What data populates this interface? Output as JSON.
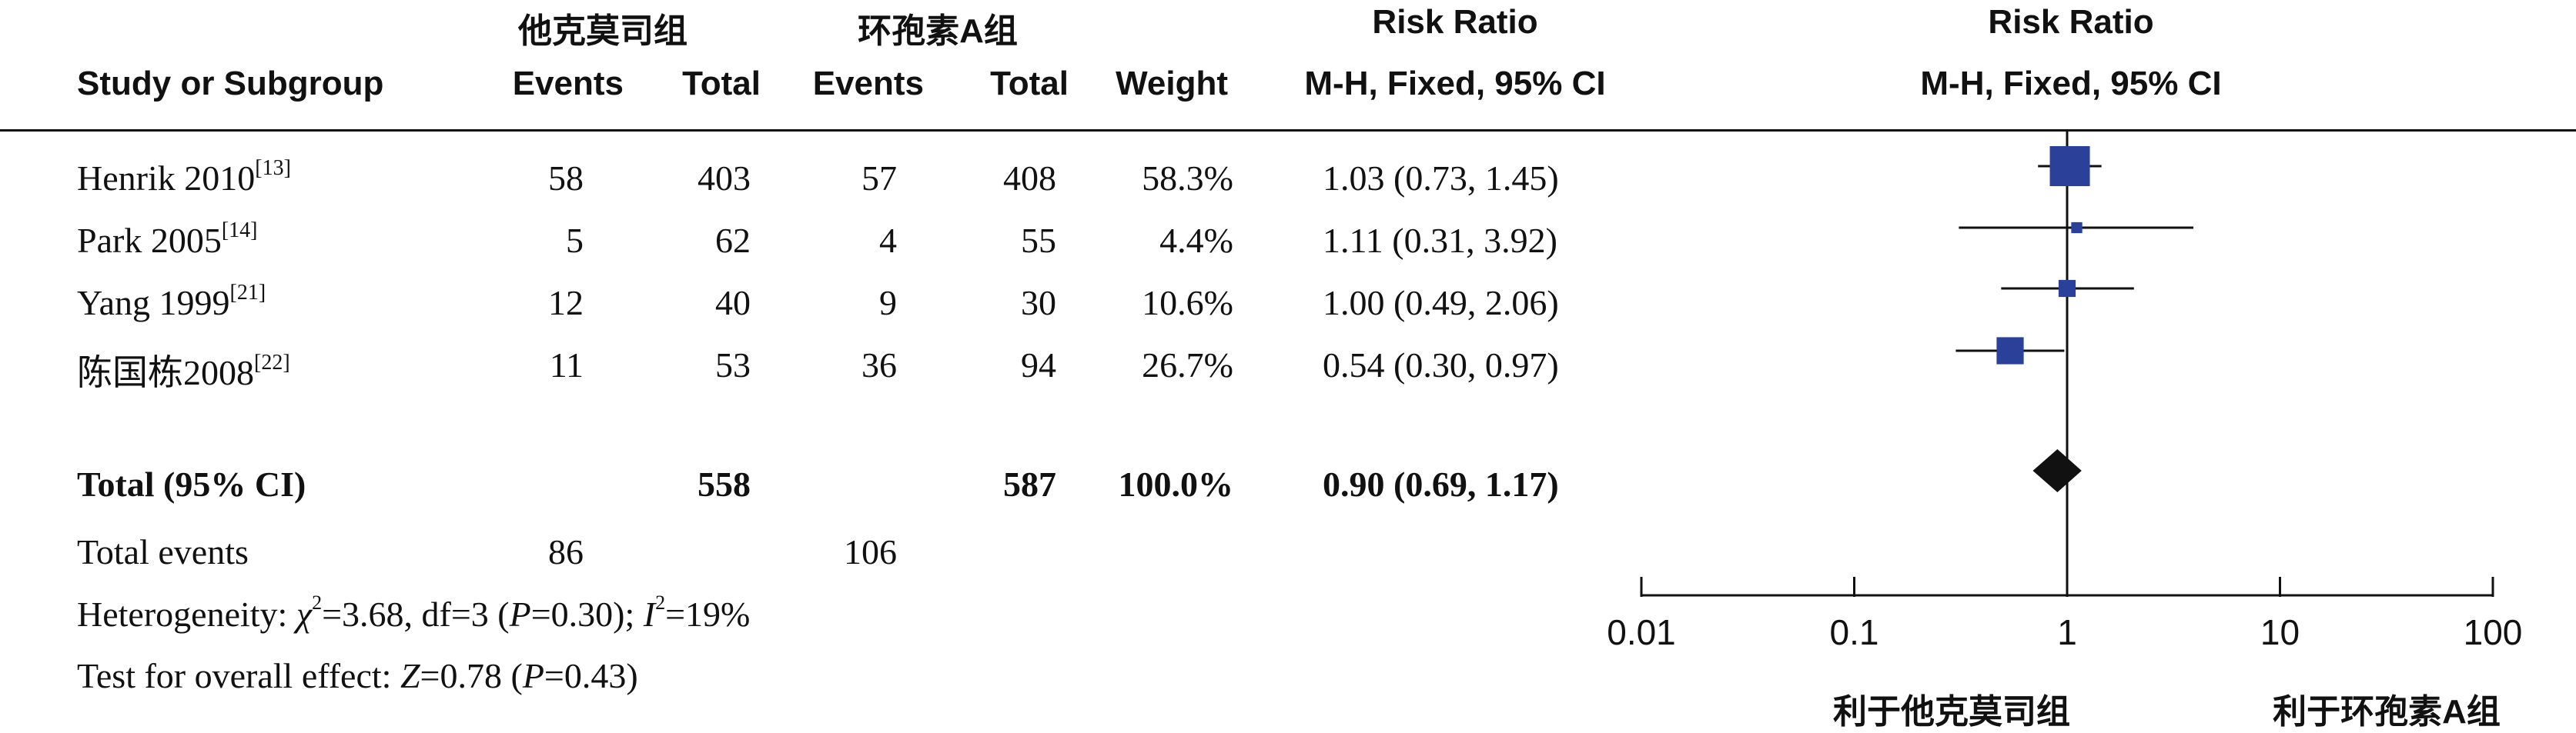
{
  "headers": {
    "group1_name": "他克莫司组",
    "group2_name": "环孢素A组",
    "risk_ratio_title": "Risk Ratio",
    "col_study": "Study or Subgroup",
    "col_events1": "Events",
    "col_total1": "Total",
    "col_events2": "Events",
    "col_total2": "Total",
    "col_weight": "Weight",
    "col_method": "M-H, Fixed, 95% CI",
    "plot_title": "Risk Ratio",
    "plot_method": "M-H, Fixed, 95% CI"
  },
  "studies": [
    {
      "name": "Henrik 2010",
      "ref": "[13]",
      "events1": "58",
      "total1": "403",
      "events2": "57",
      "total2": "408",
      "weight": "58.3%",
      "ci": "1.03 (0.73, 1.45)"
    },
    {
      "name": "Park 2005",
      "ref": "[14]",
      "events1": "5",
      "total1": "62",
      "events2": "4",
      "total2": "55",
      "weight": "4.4%",
      "ci": "1.11 (0.31, 3.92)"
    },
    {
      "name": "Yang 1999",
      "ref": "[21]",
      "events1": "12",
      "total1": "40",
      "events2": "9",
      "total2": "30",
      "weight": "10.6%",
      "ci": "1.00 (0.49, 2.06)"
    },
    {
      "name": "陈国栋2008",
      "ref": "[22]",
      "events1": "11",
      "total1": "53",
      "events2": "36",
      "total2": "94",
      "weight": "26.7%",
      "ci": "0.54 (0.30, 0.97)"
    }
  ],
  "total_row": {
    "label": "Total (95% CI)",
    "total1": "558",
    "total2": "587",
    "weight": "100.0%",
    "ci": "0.90 (0.69, 1.17)"
  },
  "total_events": {
    "label": "Total events",
    "events1": "86",
    "events2": "106"
  },
  "heterogeneity": {
    "prefix": "Heterogeneity: ",
    "chi_symbol": "χ",
    "chi_exp": "2",
    "chi_rest": "=3.68, df=3 (",
    "p_symbol": "P",
    "p_rest": "=0.30); ",
    "i_symbol": "I",
    "i_exp": "2",
    "i_rest": "=19%"
  },
  "overall_effect": {
    "prefix": "Test for overall effect: ",
    "z_symbol": "Z",
    "z_rest": "=0.78 (",
    "p_symbol": "P",
    "p_rest": "=0.43)"
  },
  "axis": {
    "ticks": [
      "0.01",
      "0.1",
      "1",
      "10",
      "100"
    ],
    "favours_left": "利于他克莫司组",
    "favours_right": "利于环孢素A组"
  },
  "colors": {
    "study_marker": "#2a4099",
    "total_marker": "#111111",
    "line": "#111111"
  },
  "chart_data": {
    "type": "forest",
    "scale": "log",
    "xlim": [
      0.01,
      100
    ],
    "x_ticks": [
      0.01,
      0.1,
      1,
      10,
      100
    ],
    "null_value": 1,
    "studies": [
      {
        "name": "Henrik 2010",
        "rr": 1.03,
        "lower": 0.73,
        "upper": 1.45,
        "weight": 58.3
      },
      {
        "name": "Park 2005",
        "rr": 1.11,
        "lower": 0.31,
        "upper": 3.92,
        "weight": 4.4
      },
      {
        "name": "Yang 1999",
        "rr": 1.0,
        "lower": 0.49,
        "upper": 2.06,
        "weight": 10.6
      },
      {
        "name": "陈国栋2008",
        "rr": 0.54,
        "lower": 0.3,
        "upper": 0.97,
        "weight": 26.7
      }
    ],
    "total": {
      "rr": 0.9,
      "lower": 0.69,
      "upper": 1.17
    }
  }
}
